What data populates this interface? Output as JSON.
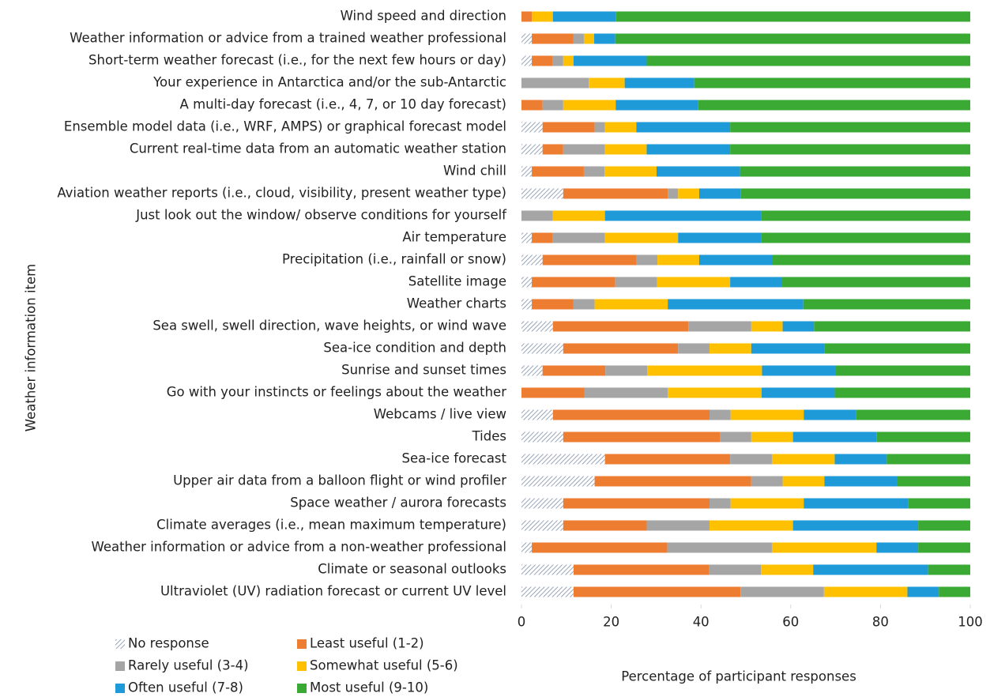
{
  "chart_data": {
    "type": "stacked-bar-horizontal",
    "y_label": "Weather information item",
    "x_label": "Percentage of participant responses",
    "xlim": [
      0,
      100
    ],
    "xticks": [
      0,
      20,
      40,
      60,
      80,
      100
    ],
    "categories": [
      "Wind speed and direction",
      "Weather information or advice from a trained weather professional",
      "Short-term weather forecast (i.e., for the next few hours or day)",
      "Your experience in Antarctica and/or the sub-Antarctic",
      "A multi-day forecast (i.e., 4, 7, or 10 day forecast)",
      "Ensemble model data (i.e., WRF, AMPS) or graphical forecast model",
      "Current real-time data from an automatic weather station",
      "Wind chill",
      "Aviation weather reports  (i.e., cloud, visibility, present weather type)",
      "Just look out the window/ observe conditions for yourself",
      "Air temperature",
      "Precipitation (i.e., rainfall or snow)",
      "Satellite image",
      "Weather charts",
      "Sea swell, swell direction, wave heights, or wind wave",
      "Sea-ice condition and depth",
      "Sunrise and sunset times",
      "Go with your instincts or feelings about the weather",
      "Webcams / live view",
      "Tides",
      "Sea-ice forecast",
      "Upper air data from a balloon flight or wind profiler",
      "Space weather / aurora forecasts",
      "Climate averages  (i.e., mean maximum temperature)",
      "Weather information or advice from a non-weather professional",
      "Climate or seasonal outlooks",
      "Ultraviolet (UV) radiation forecast or current UV level"
    ],
    "series": [
      {
        "name": "No response",
        "color": "#7f8fa9",
        "pattern": "hatch",
        "values": [
          0,
          2.3,
          2.3,
          0,
          0,
          4.7,
          4.7,
          2.3,
          9.3,
          0,
          2.3,
          4.7,
          2.3,
          2.3,
          7,
          9.3,
          4.7,
          0,
          7,
          9.3,
          18.6,
          16.3,
          9.3,
          9.3,
          2.3,
          11.6,
          11.6
        ]
      },
      {
        "name": "Least useful (1-2)",
        "color": "#ed7d31",
        "values": [
          2.3,
          9.3,
          4.7,
          0,
          4.7,
          11.6,
          4.6,
          11.6,
          23.3,
          0,
          4.7,
          20.9,
          18.6,
          9.3,
          30.2,
          25.6,
          14,
          14,
          34.9,
          34.9,
          27.9,
          34.9,
          32.6,
          18.6,
          30.2,
          30.2,
          37.2
        ]
      },
      {
        "name": "Rarely useful (3-4)",
        "color": "#a5a5a5",
        "values": [
          0,
          2.3,
          2.3,
          15,
          4.6,
          2.3,
          9.3,
          4.6,
          2.3,
          7,
          11.6,
          4.7,
          9.3,
          4.7,
          14,
          7,
          9.3,
          18.6,
          4.7,
          7,
          9.3,
          7,
          4.7,
          14,
          23.3,
          11.6,
          18.6
        ]
      },
      {
        "name": "Somewhat useful (5-6)",
        "color": "#ffc000",
        "values": [
          4.7,
          2.3,
          2.3,
          8,
          11.7,
          7,
          9.3,
          11.6,
          4.7,
          11.6,
          16.3,
          9.3,
          16.3,
          16.3,
          7,
          9.3,
          25.6,
          20.9,
          16.3,
          9.3,
          14,
          9.3,
          16.3,
          18.6,
          23.3,
          11.6,
          18.6
        ]
      },
      {
        "name": "Often useful (7-8)",
        "color": "#1f9ad8",
        "values": [
          14,
          4.7,
          16.3,
          15.5,
          18.3,
          20.9,
          18.6,
          18.6,
          9.3,
          34.9,
          18.6,
          16.3,
          11.6,
          30.2,
          7,
          16.3,
          16.3,
          16.3,
          11.6,
          18.6,
          11.6,
          16.3,
          23.3,
          27.9,
          9.3,
          25.6,
          7
        ]
      },
      {
        "name": "Most useful (9-10)",
        "color": "#3aaa35",
        "values": [
          79,
          79.1,
          72.1,
          61.5,
          60.7,
          53.5,
          53.5,
          51.3,
          51.1,
          46.5,
          46.5,
          44.1,
          41.9,
          37.2,
          34.8,
          32.5,
          30.1,
          30.2,
          25.5,
          20.9,
          18.6,
          16.2,
          13.8,
          11.6,
          11.6,
          9.4,
          7
        ]
      }
    ]
  }
}
